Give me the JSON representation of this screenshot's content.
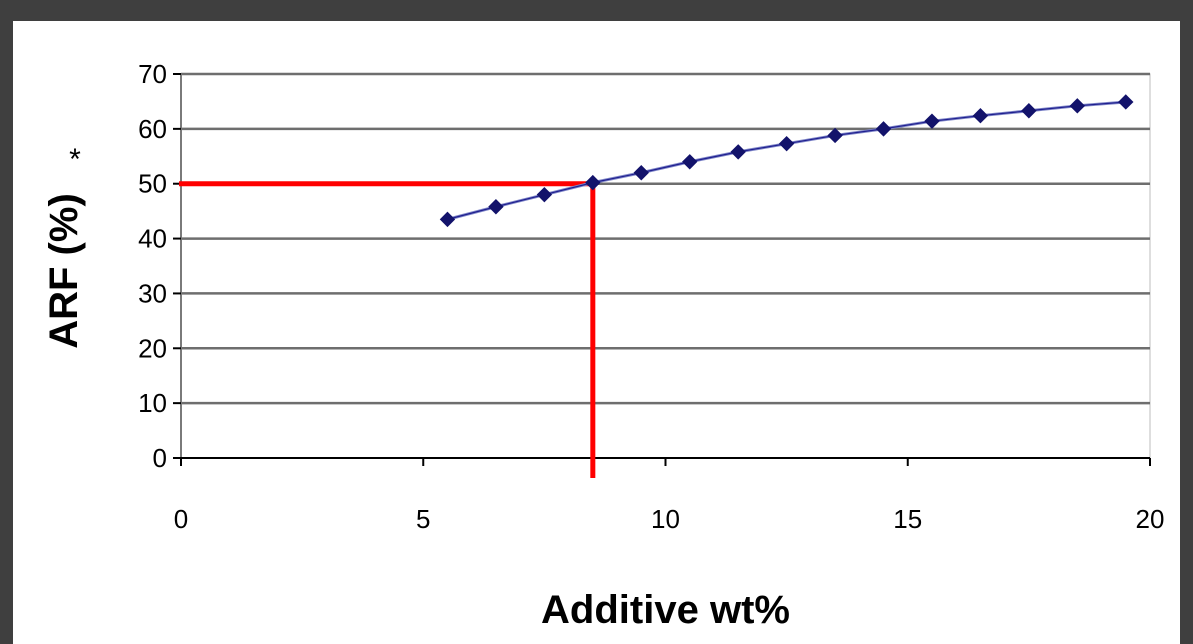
{
  "chart_data": {
    "type": "line",
    "title": "",
    "xlabel": "Additive wt%",
    "ylabel": "ARF (%)",
    "ylabel_marker": "*",
    "xlim": [
      0,
      20
    ],
    "ylim": [
      0,
      70
    ],
    "x_ticks": [
      "0",
      "5",
      "10",
      "15",
      "20"
    ],
    "y_ticks": [
      "0",
      "10",
      "20",
      "30",
      "40",
      "50",
      "60",
      "70"
    ],
    "grid": "horizontal",
    "legend": "none",
    "series": [
      {
        "color": "#1f1f8f",
        "marker": "diamond",
        "x": [
          5.5,
          6.5,
          7.5,
          8.5,
          9.5,
          10.5,
          11.5,
          12.5,
          13.5,
          14.5,
          15.5,
          16.5,
          17.5,
          18.5,
          19.5
        ],
        "y": [
          43.5,
          45.8,
          48.0,
          50.2,
          52.0,
          54.0,
          55.8,
          57.3,
          58.8,
          60.0,
          61.4,
          62.4,
          63.3,
          64.2,
          64.9
        ]
      }
    ],
    "annotations": [
      {
        "type": "guide-lines",
        "color": "#ff0000",
        "x": 8.5,
        "y": 50
      }
    ]
  }
}
